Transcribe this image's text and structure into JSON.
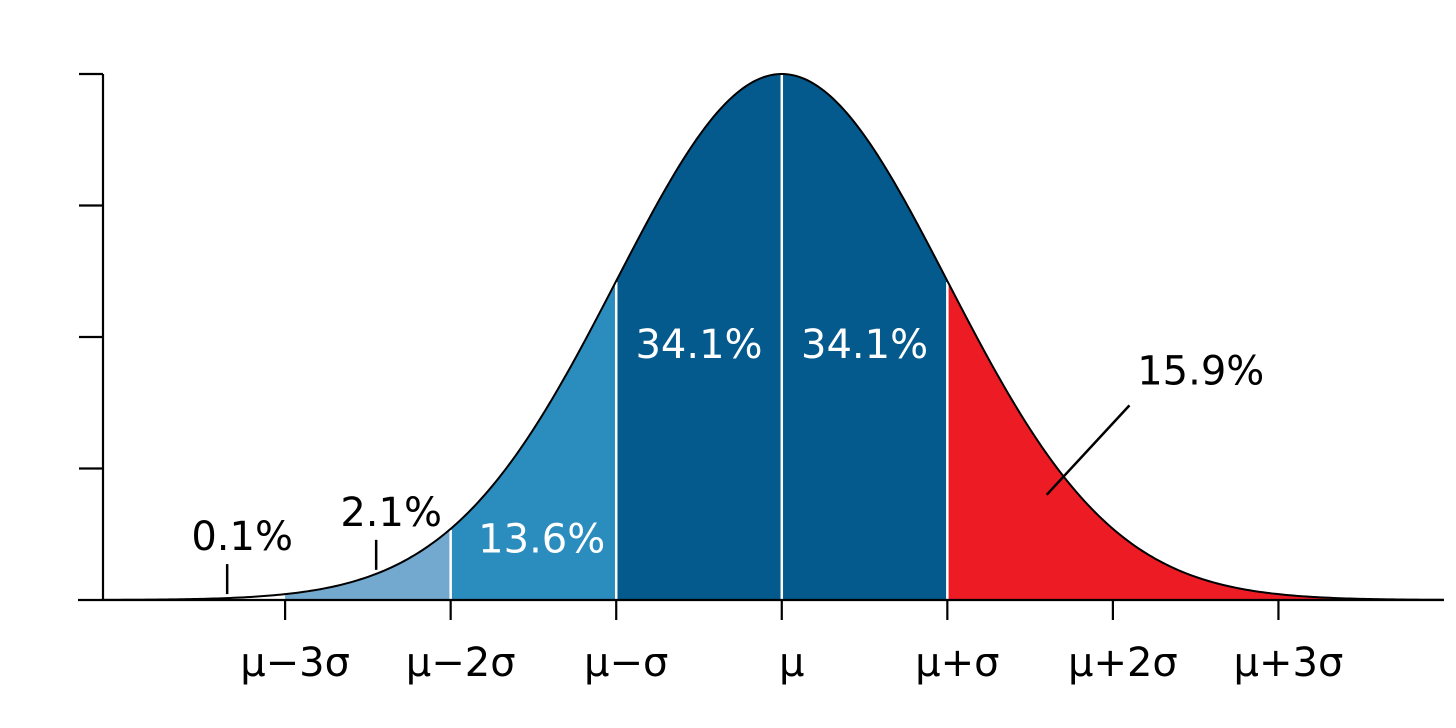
{
  "chart_data": {
    "type": "area",
    "title": "",
    "xlabel": "",
    "ylabel": "",
    "curve": "normal distribution",
    "mu": 0,
    "sigma": 1,
    "xlim": [
      -4.1,
      4.0
    ],
    "ylim": [
      0,
      1
    ],
    "y_ticks": [
      0,
      0.25,
      0.5,
      0.75,
      1.0
    ],
    "y_tick_labels_shown": false,
    "x_ticks": [
      -3,
      -2,
      -1,
      0,
      1,
      2,
      3
    ],
    "x_tick_labels": [
      "μ−3σ",
      "μ−2σ",
      "μ−σ",
      "μ",
      "μ+σ",
      "μ+2σ",
      "μ+3σ"
    ],
    "grid": false,
    "legend": "none",
    "regions": [
      {
        "name": "",
        "from": -4.1,
        "to": -3,
        "color": "#ffffff"
      },
      {
        "name": "",
        "from": -3,
        "to": -2,
        "color": "#74a9cf"
      },
      {
        "name": "",
        "from": -2,
        "to": -1,
        "color": "#2b8cbe"
      },
      {
        "name": "",
        "from": -1,
        "to": 0,
        "color": "#045a8d"
      },
      {
        "name": "",
        "from": 0,
        "to": 1,
        "color": "#045a8d"
      },
      {
        "name": "",
        "from": 1,
        "to": 4.0,
        "color": "#ed1c24"
      }
    ],
    "annotations": [
      {
        "text": "0.1%",
        "x": -3.35,
        "color": "#000000",
        "leader": "tick"
      },
      {
        "text": "2.1%",
        "x": -2.45,
        "color": "#000000",
        "leader": "tick"
      },
      {
        "text": "13.6%",
        "x": -1.45,
        "color": "#ffffff",
        "leader": "none"
      },
      {
        "text": "34.1%",
        "x": -0.5,
        "color": "#ffffff",
        "leader": "none"
      },
      {
        "text": "34.1%",
        "x": 0.5,
        "color": "#ffffff",
        "leader": "none"
      },
      {
        "text": "15.9%",
        "x": 2.7,
        "color": "#000000",
        "leader": "line"
      }
    ],
    "divider_color": "#ffffff",
    "curve_color": "#000000"
  }
}
